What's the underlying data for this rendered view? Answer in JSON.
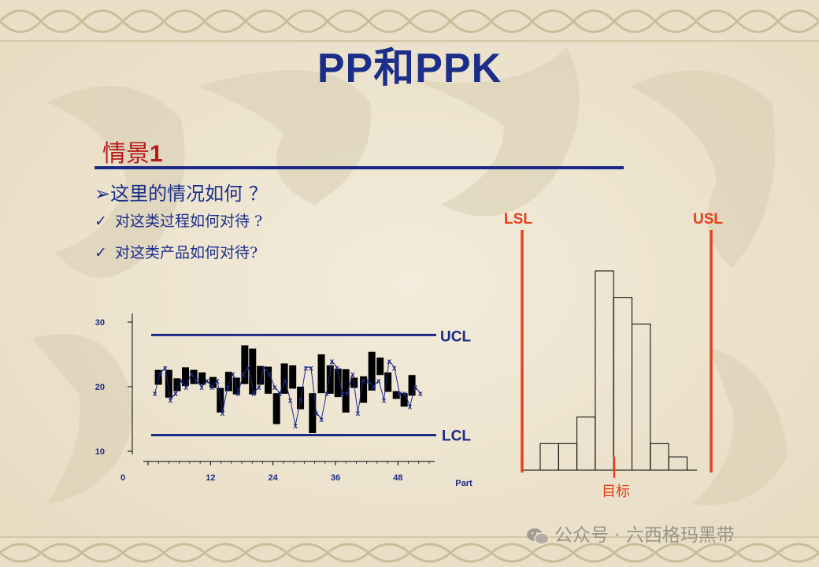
{
  "title": "PP和PPK",
  "section": {
    "label": "情景",
    "number": "1"
  },
  "question": "➢这里的情况如何 ？",
  "bullets": [
    {
      "check": "✓",
      "text": "对这类过程如何对待 ?"
    },
    {
      "check": "✓",
      "text": "对这类产品如何对待?"
    }
  ],
  "watermark": "公众号 · 六西格玛黑带",
  "colors": {
    "navy": "#1b2a86",
    "red": "#e8401a",
    "darkred": "#b81b1b",
    "paper": "#efe6d2"
  },
  "chart_data": [
    {
      "type": "control_chart",
      "xlabel": "Part",
      "x_ticks": [
        0,
        12,
        24,
        36,
        48
      ],
      "y_ticks": [
        10,
        20,
        30
      ],
      "ylim": [
        10,
        30
      ],
      "xlim": [
        0,
        54
      ],
      "ucl": {
        "label": "UCL",
        "value": 28
      },
      "lcl": {
        "label": "LCL",
        "value": 12.5
      },
      "series": [
        {
          "marker": "x",
          "x": [
            1,
            2,
            3,
            4,
            5,
            6,
            7,
            8,
            9,
            10,
            11,
            12,
            13,
            14,
            15,
            16,
            17,
            18,
            19,
            20,
            21,
            22,
            23,
            24,
            25,
            26,
            27,
            28,
            29,
            30,
            31,
            32,
            33,
            34,
            35,
            36,
            37,
            38,
            39,
            40,
            41,
            42,
            43,
            44,
            45,
            46,
            47,
            48,
            49,
            50,
            51,
            52
          ],
          "y": [
            19,
            22,
            23,
            18,
            19,
            21,
            20,
            22,
            21,
            20,
            21,
            20,
            21,
            16,
            20,
            22,
            19,
            22,
            23,
            19,
            20,
            23,
            22,
            20,
            19,
            21,
            18,
            14,
            18,
            23,
            23,
            16,
            15,
            19,
            24,
            23,
            19,
            19,
            22,
            16,
            21,
            21,
            20,
            21,
            18,
            24,
            23,
            19,
            19,
            17,
            20,
            19
          ]
        }
      ],
      "bars": [
        {
          "x": 1,
          "low": 20.3,
          "high": 22.6
        },
        {
          "x": 3,
          "low": 18.3,
          "high": 22.6
        },
        {
          "x": 4.6,
          "low": 19.3,
          "high": 21.3
        },
        {
          "x": 6.2,
          "low": 20.1,
          "high": 23.0
        },
        {
          "x": 7.8,
          "low": 20.4,
          "high": 22.6
        },
        {
          "x": 9.4,
          "low": 20.3,
          "high": 22.2
        },
        {
          "x": 11.5,
          "low": 19.8,
          "high": 21.5
        },
        {
          "x": 12.9,
          "low": 16.0,
          "high": 19.8
        },
        {
          "x": 14.5,
          "low": 19.3,
          "high": 22.3
        },
        {
          "x": 16,
          "low": 18.8,
          "high": 21.4
        },
        {
          "x": 17.6,
          "low": 20.4,
          "high": 26.4
        },
        {
          "x": 19.1,
          "low": 18.8,
          "high": 25.9
        },
        {
          "x": 20.6,
          "low": 20.3,
          "high": 23.2
        },
        {
          "x": 22.1,
          "low": 18.9,
          "high": 23.1
        },
        {
          "x": 23.7,
          "low": 14.2,
          "high": 19.0
        },
        {
          "x": 25.2,
          "low": 18.9,
          "high": 23.6
        },
        {
          "x": 26.8,
          "low": 19.7,
          "high": 23.3
        },
        {
          "x": 28.3,
          "low": 16.5,
          "high": 20.0
        },
        {
          "x": 30.6,
          "low": 12.8,
          "high": 19.0
        },
        {
          "x": 32.3,
          "low": 19.0,
          "high": 25.0
        },
        {
          "x": 34,
          "low": 18.9,
          "high": 23.3
        },
        {
          "x": 35.5,
          "low": 18.4,
          "high": 22.8
        },
        {
          "x": 37,
          "low": 16.0,
          "high": 22.7
        },
        {
          "x": 38.6,
          "low": 19.8,
          "high": 21.4
        },
        {
          "x": 40.4,
          "low": 17.5,
          "high": 21.6
        },
        {
          "x": 42,
          "low": 19.4,
          "high": 25.4
        },
        {
          "x": 43.6,
          "low": 21.8,
          "high": 24.5
        },
        {
          "x": 45.1,
          "low": 19.2,
          "high": 22.2
        },
        {
          "x": 46.7,
          "low": 18.1,
          "high": 19.3
        },
        {
          "x": 48.2,
          "low": 16.9,
          "high": 19.0
        },
        {
          "x": 49.7,
          "low": 18.6,
          "high": 21.8
        }
      ]
    },
    {
      "type": "histogram",
      "lsl": {
        "label": "LSL"
      },
      "usl": {
        "label": "USL"
      },
      "target": {
        "label": "目标"
      },
      "values": [
        0,
        2,
        2,
        4,
        15,
        13,
        11,
        2,
        1
      ]
    }
  ]
}
